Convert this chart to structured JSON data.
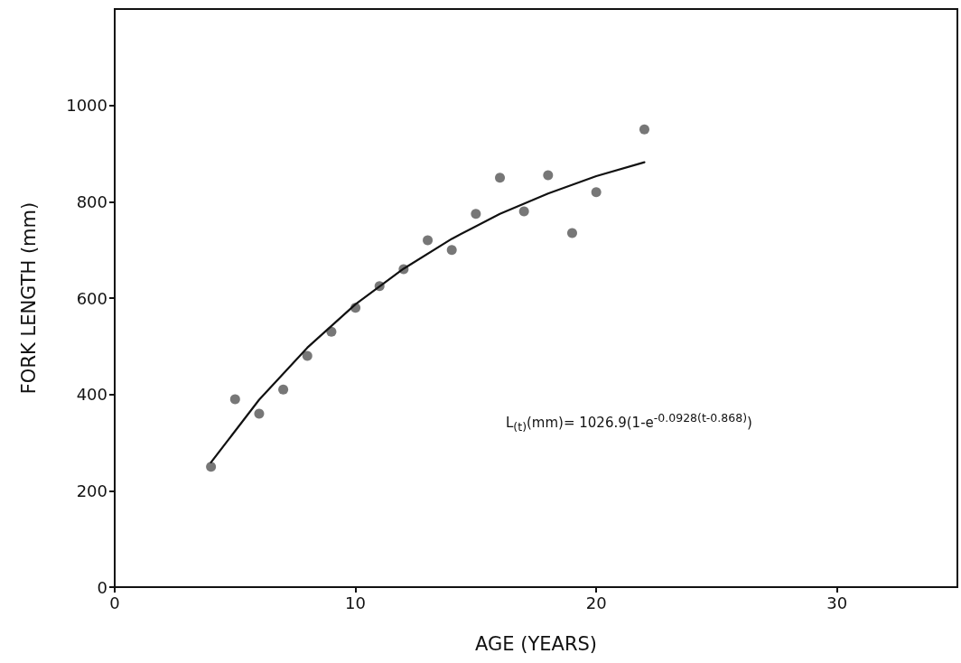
{
  "chart_data": {
    "type": "scatter",
    "xlabel": "AGE (YEARS)",
    "ylabel": "FORK LENGTH (mm)",
    "xlim": [
      0,
      35
    ],
    "xticks": [
      0,
      10,
      20,
      30
    ],
    "ylim": [
      0,
      1200
    ],
    "yticks": [
      0,
      200,
      400,
      600,
      800,
      1000
    ],
    "grid": false,
    "marker": "circle",
    "annotations": [
      "L$_{(t)}$(mm)= 1026.9(1-e$^{-0.0928(t-0.868)}$)"
    ],
    "series": [
      {
        "color": "#555555",
        "x": [
          4,
          5,
          6,
          7,
          8,
          9,
          10,
          11,
          12,
          13,
          14,
          15,
          16,
          17,
          18,
          19,
          20,
          22
        ],
        "values": [
          250,
          390,
          360,
          410,
          480,
          530,
          580,
          625,
          660,
          720,
          700,
          775,
          850,
          780,
          855,
          735,
          820,
          950
        ]
      },
      {
        "type": "line",
        "color": "#111111",
        "marker": "none",
        "line_style": "solid",
        "x": [
          4,
          6,
          8,
          10,
          12,
          14,
          16,
          18,
          20,
          22
        ],
        "values": [
          259,
          389,
          497,
          587,
          661,
          723,
          775,
          817,
          853,
          882
        ]
      }
    ]
  }
}
